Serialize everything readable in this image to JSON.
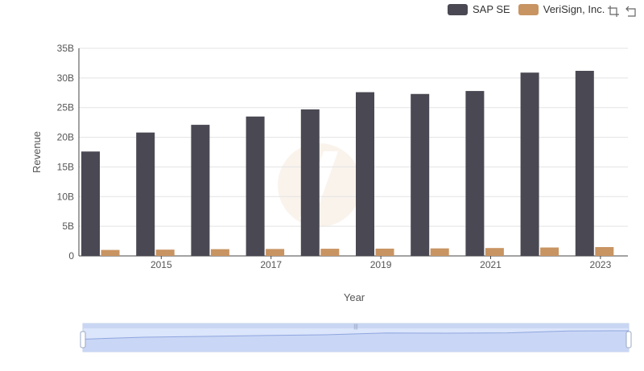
{
  "chart_data": {
    "type": "bar",
    "categories": [
      "2014",
      "2015",
      "2016",
      "2017",
      "2018",
      "2019",
      "2020",
      "2021",
      "2022",
      "2023"
    ],
    "series": [
      {
        "name": "SAP SE",
        "color": "#4a4953",
        "values": [
          17.6,
          20.8,
          22.1,
          23.5,
          24.7,
          27.6,
          27.3,
          27.8,
          30.9,
          31.2
        ]
      },
      {
        "name": "VeriSign, Inc.",
        "color": "#c89462",
        "values": [
          1.01,
          1.06,
          1.14,
          1.17,
          1.21,
          1.23,
          1.27,
          1.33,
          1.42,
          1.49
        ]
      }
    ],
    "xlabel": "Year",
    "ylabel": "Revenue",
    "ylim": [
      0,
      35
    ],
    "yticks": [
      0,
      5,
      10,
      15,
      20,
      25,
      30,
      35
    ],
    "ytick_labels": [
      "0",
      "5B",
      "10B",
      "15B",
      "20B",
      "25B",
      "30B",
      "35B"
    ],
    "xtick_labels": [
      "2015",
      "2017",
      "2019",
      "2021",
      "2023"
    ],
    "grid": true,
    "legend": "top-right",
    "zoom_slider": {
      "start": 0,
      "end": 1
    }
  },
  "toolbar": {
    "zoom_icon": "zoom-select-icon",
    "reset_icon": "zoom-reset-icon"
  }
}
